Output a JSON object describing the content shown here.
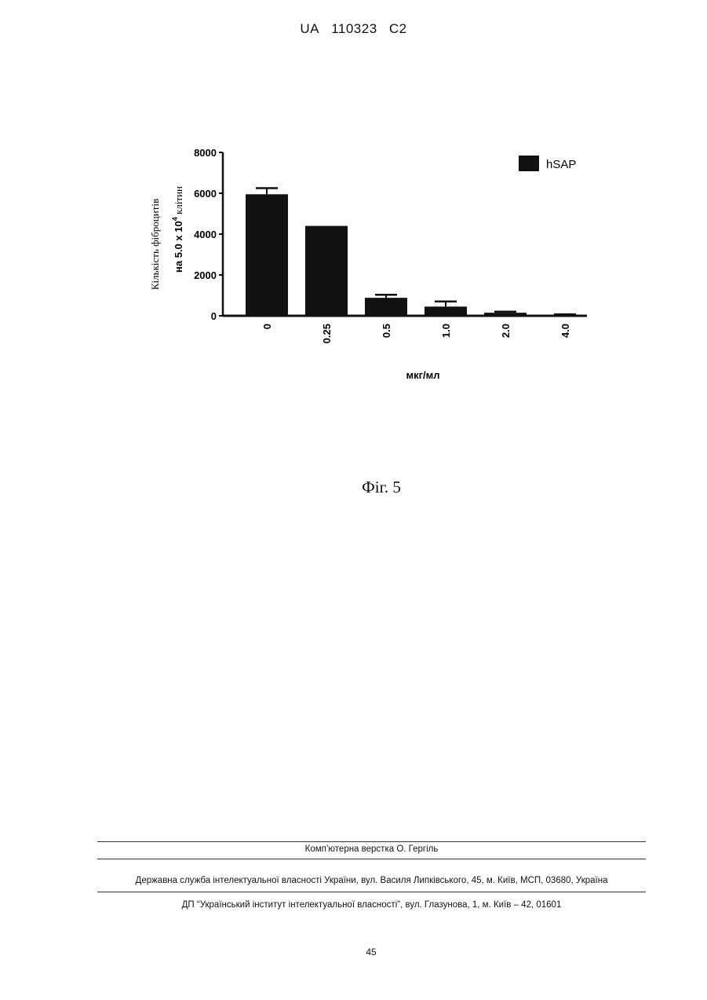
{
  "header": {
    "country": "UA",
    "number": "110323",
    "kind": "C2"
  },
  "chart_data": {
    "type": "bar",
    "categories": [
      "0",
      "0.25",
      "0.5",
      "1.0",
      "2.0",
      "4.0"
    ],
    "series": [
      {
        "name": "hSAP",
        "values": [
          5950,
          4400,
          880,
          450,
          150,
          50
        ],
        "errors": [
          300,
          0,
          150,
          250,
          50,
          20
        ]
      }
    ],
    "ylim": [
      0,
      8000
    ],
    "yticks": [
      "0",
      "2000",
      "4000",
      "6000",
      "8000"
    ],
    "xlabel": "мкг/мл",
    "ylabel_line1": "Кількість фіброцитів",
    "ylabel_line2_prefix": "на 5.0 х 10",
    "ylabel_line2_exp": "4",
    "ylabel_line2_suffix": " клітин",
    "legend_position": "top-right",
    "bar_color": "#111111"
  },
  "caption": "Фіг. 5",
  "footer": {
    "line1": "Комп’ютерна верстка О. Гергіль",
    "line2": "Державна служба інтелектуальної власності України, вул. Василя Липківського, 45, м. Київ, МСП, 03680, Україна",
    "line3": "ДП “Український інститут інтелектуальної власності”, вул. Глазунова, 1, м. Київ – 42, 01601"
  },
  "page_number": "45"
}
